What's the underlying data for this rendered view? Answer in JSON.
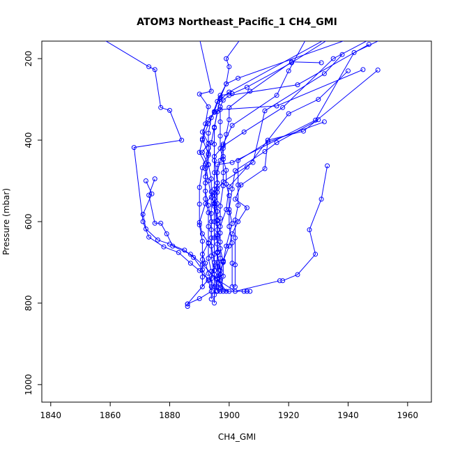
{
  "chart_data": {
    "type": "line",
    "title": "ATOM3 Northeast_Pacific_1 CH4_GMI",
    "xlabel": "CH4_GMI",
    "ylabel": "Pressure (mbar)",
    "xlim": [
      1837,
      1968
    ],
    "ylim": [
      1043,
      157
    ],
    "y_reversed": true,
    "grid": false,
    "legend": "none",
    "x_ticks": [
      1840,
      1860,
      1880,
      1900,
      1920,
      1940,
      1960
    ],
    "y_ticks": [
      200,
      400,
      600,
      800,
      1000
    ],
    "series_color": "#0000ff",
    "marker": "open-circle",
    "series": [
      {
        "values": [
          [
            1857,
            150
          ],
          [
            1873,
            220
          ],
          [
            1875,
            227
          ],
          [
            1877,
            320
          ],
          [
            1880,
            327
          ],
          [
            1884,
            400
          ],
          [
            1868,
            418
          ],
          [
            1871,
            600
          ],
          [
            1873,
            638
          ],
          [
            1878,
            662
          ],
          [
            1883,
            676
          ],
          [
            1887,
            702
          ],
          [
            1890,
            720
          ],
          [
            1893,
            742
          ],
          [
            1886,
            802
          ],
          [
            1886,
            808
          ]
        ]
      },
      {
        "values": [
          [
            1872,
            500
          ],
          [
            1874,
            532
          ],
          [
            1871,
            582
          ],
          [
            1872,
            618
          ],
          [
            1876,
            645
          ],
          [
            1880,
            655
          ],
          [
            1885,
            670
          ],
          [
            1888,
            688
          ],
          [
            1891,
            718
          ],
          [
            1893,
            745
          ],
          [
            1894,
            771
          ],
          [
            1890,
            789
          ],
          [
            1886,
            802
          ]
        ]
      },
      {
        "values": [
          [
            1875,
            495
          ],
          [
            1873,
            535
          ],
          [
            1875,
            604
          ],
          [
            1877,
            604
          ],
          [
            1879,
            630
          ],
          [
            1881,
            660
          ],
          [
            1887,
            680
          ],
          [
            1891,
            705
          ],
          [
            1896,
            742
          ],
          [
            1902,
            771
          ],
          [
            1917,
            745
          ]
        ]
      },
      {
        "values": [
          [
            1938,
            190
          ],
          [
            1932,
            237
          ],
          [
            1912,
            328
          ],
          [
            1908,
            455
          ],
          [
            1898,
            502
          ],
          [
            1895,
            529
          ],
          [
            1892,
            556
          ],
          [
            1890,
            602
          ],
          [
            1891,
            630
          ],
          [
            1893,
            652
          ],
          [
            1891,
            680
          ],
          [
            1892,
            702
          ],
          [
            1893,
            727
          ],
          [
            1895,
            760
          ],
          [
            1895,
            800
          ]
        ]
      },
      {
        "values": [
          [
            1945,
            227
          ],
          [
            1916,
            316
          ],
          [
            1897,
            325
          ],
          [
            1895,
            332
          ],
          [
            1893,
            350
          ],
          [
            1891,
            380
          ],
          [
            1893,
            408
          ],
          [
            1891,
            430
          ],
          [
            1893,
            460
          ],
          [
            1892,
            490
          ],
          [
            1892,
            525
          ],
          [
            1893,
            560
          ],
          [
            1894,
            600
          ],
          [
            1894,
            640
          ],
          [
            1894,
            684
          ],
          [
            1895,
            730
          ],
          [
            1896,
            770
          ]
        ]
      },
      {
        "values": [
          [
            1948,
            150
          ],
          [
            1935,
            200
          ],
          [
            1918,
            320
          ],
          [
            1905,
            380
          ],
          [
            1898,
            414
          ],
          [
            1895,
            440
          ],
          [
            1896,
            505
          ],
          [
            1896,
            528
          ],
          [
            1895,
            557
          ],
          [
            1896,
            620
          ],
          [
            1896,
            655
          ],
          [
            1896,
            700
          ],
          [
            1897,
            745
          ]
        ]
      },
      {
        "values": [
          [
            1952,
            150
          ],
          [
            1942,
            185
          ],
          [
            1929,
            351
          ],
          [
            1901,
            455
          ],
          [
            1896,
            460
          ],
          [
            1896,
            505
          ],
          [
            1895,
            545
          ],
          [
            1896,
            575
          ],
          [
            1896,
            605
          ],
          [
            1896,
            640
          ],
          [
            1896,
            675
          ],
          [
            1896,
            710
          ],
          [
            1896,
            740
          ],
          [
            1895,
            780
          ]
        ]
      },
      {
        "values": [
          [
            1934,
            150
          ],
          [
            1921,
            210
          ],
          [
            1906,
            270
          ],
          [
            1901,
            286
          ],
          [
            1897,
            290
          ],
          [
            1895,
            330
          ],
          [
            1893,
            360
          ],
          [
            1891,
            400
          ],
          [
            1890,
            430
          ],
          [
            1892,
            458
          ],
          [
            1893,
            500
          ],
          [
            1894,
            540
          ],
          [
            1894,
            580
          ],
          [
            1894,
            620
          ],
          [
            1894,
            660
          ],
          [
            1895,
            700
          ],
          [
            1894,
            740
          ],
          [
            1894,
            790
          ]
        ]
      },
      {
        "values": [
          [
            1904,
            150
          ],
          [
            1899,
            200
          ],
          [
            1900,
            220
          ],
          [
            1899,
            262
          ],
          [
            1897,
            296
          ],
          [
            1896,
            330
          ],
          [
            1895,
            370
          ],
          [
            1895,
            410
          ],
          [
            1895,
            450
          ],
          [
            1895,
            480
          ],
          [
            1895,
            520
          ],
          [
            1895,
            555
          ],
          [
            1896,
            596
          ],
          [
            1896,
            636
          ],
          [
            1896,
            677
          ],
          [
            1897,
            720
          ],
          [
            1898,
            771
          ]
        ]
      },
      {
        "values": [
          [
            1890,
            150
          ],
          [
            1894,
            280
          ],
          [
            1890,
            287
          ],
          [
            1893,
            318
          ],
          [
            1892,
            360
          ],
          [
            1891,
            397
          ],
          [
            1893,
            433
          ],
          [
            1891,
            468
          ],
          [
            1890,
            516
          ],
          [
            1890,
            557
          ],
          [
            1890,
            608
          ],
          [
            1891,
            648
          ],
          [
            1891,
            693
          ],
          [
            1891,
            736
          ],
          [
            1891,
            760
          ]
        ]
      },
      {
        "values": [
          [
            1926,
            150
          ],
          [
            1920,
            230
          ],
          [
            1916,
            290
          ],
          [
            1901,
            364
          ],
          [
            1898,
            410
          ],
          [
            1898,
            440
          ],
          [
            1898,
            480
          ],
          [
            1898,
            512
          ],
          [
            1897,
            562
          ],
          [
            1897,
            592
          ],
          [
            1897,
            628
          ],
          [
            1897,
            666
          ],
          [
            1898,
            698
          ],
          [
            1898,
            734
          ],
          [
            1897,
            771
          ]
        ]
      },
      {
        "values": [
          [
            1933,
            150
          ],
          [
            1900,
            282
          ],
          [
            1897,
            300
          ],
          [
            1895,
            368
          ],
          [
            1894,
            406
          ],
          [
            1893,
            437
          ],
          [
            1892,
            470
          ],
          [
            1892,
            505
          ],
          [
            1892,
            544
          ],
          [
            1893,
            578
          ],
          [
            1893,
            612
          ],
          [
            1893,
            653
          ],
          [
            1893,
            690
          ],
          [
            1894,
            722
          ],
          [
            1894,
            760
          ]
        ]
      },
      {
        "values": [
          [
            1941,
            150
          ],
          [
            1903,
            248
          ],
          [
            1899,
            262
          ],
          [
            1896,
            305
          ],
          [
            1894,
            345
          ],
          [
            1893,
            383
          ],
          [
            1893,
            420
          ],
          [
            1893,
            460
          ],
          [
            1894,
            495
          ],
          [
            1894,
            527
          ],
          [
            1895,
            562
          ],
          [
            1895,
            600
          ],
          [
            1895,
            640
          ],
          [
            1895,
            680
          ],
          [
            1895,
            720
          ],
          [
            1895,
            760
          ]
        ]
      },
      {
        "values": [
          [
            1931,
            210
          ],
          [
            1921,
            208
          ],
          [
            1907,
            280
          ],
          [
            1900,
            320
          ],
          [
            1900,
            350
          ],
          [
            1899,
            386
          ],
          [
            1898,
            420
          ],
          [
            1897,
            450
          ],
          [
            1896,
            480
          ],
          [
            1896,
            518
          ],
          [
            1896,
            556
          ],
          [
            1896,
            598
          ],
          [
            1896,
            632
          ],
          [
            1896,
            676
          ],
          [
            1896,
            713
          ],
          [
            1896,
            760
          ]
        ]
      },
      {
        "values": [
          [
            1947,
            165
          ],
          [
            1923,
            264
          ],
          [
            1900,
            290
          ],
          [
            1898,
            302
          ],
          [
            1897,
            318
          ],
          [
            1897,
            355
          ],
          [
            1897,
            390
          ],
          [
            1897,
            420
          ],
          [
            1898,
            447
          ],
          [
            1899,
            474
          ],
          [
            1899,
            508
          ],
          [
            1900,
            536
          ],
          [
            1900,
            578
          ],
          [
            1900,
            612
          ],
          [
            1901,
            652
          ],
          [
            1901,
            702
          ],
          [
            1901,
            760
          ]
        ]
      },
      {
        "values": [
          [
            1933,
            463
          ],
          [
            1931,
            545
          ],
          [
            1927,
            620
          ],
          [
            1929,
            680
          ],
          [
            1923,
            730
          ],
          [
            1918,
            745
          ]
        ]
      },
      {
        "values": [
          [
            1932,
            355
          ],
          [
            1913,
            405
          ],
          [
            1903,
            450
          ],
          [
            1903,
            510
          ],
          [
            1903,
            560
          ],
          [
            1902,
            596
          ],
          [
            1902,
            640
          ],
          [
            1902,
            706
          ],
          [
            1902,
            760
          ]
        ]
      },
      {
        "values": [
          [
            1930,
            350
          ],
          [
            1916,
            406
          ],
          [
            1912,
            428
          ],
          [
            1902,
            475
          ],
          [
            1901,
            520
          ],
          [
            1900,
            570
          ],
          [
            1901,
            605
          ],
          [
            1899,
            660
          ],
          [
            1898,
            700
          ],
          [
            1896,
            740
          ],
          [
            1899,
            771
          ],
          [
            1907,
            771
          ]
        ]
      },
      {
        "values": [
          [
            1950,
            228
          ],
          [
            1925,
            378
          ],
          [
            1913,
            400
          ],
          [
            1912,
            470
          ],
          [
            1904,
            510
          ],
          [
            1902,
            545
          ],
          [
            1906,
            566
          ],
          [
            1903,
            600
          ],
          [
            1901,
            630
          ],
          [
            1900,
            660
          ],
          [
            1898,
            696
          ],
          [
            1897,
            730
          ],
          [
            1897,
            762
          ],
          [
            1900,
            771
          ],
          [
            1905,
            771
          ]
        ]
      },
      {
        "values": [
          [
            1940,
            230
          ],
          [
            1930,
            300
          ],
          [
            1920,
            335
          ],
          [
            1906,
            466
          ],
          [
            1900,
            514
          ],
          [
            1899,
            570
          ],
          [
            1897,
            612
          ],
          [
            1897,
            650
          ],
          [
            1897,
            690
          ],
          [
            1897,
            730
          ],
          [
            1896,
            771
          ],
          [
            1906,
            771
          ]
        ]
      }
    ]
  }
}
